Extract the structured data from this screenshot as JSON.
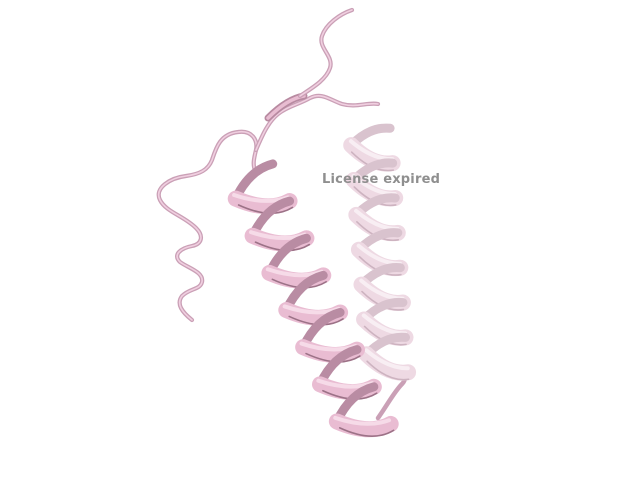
{
  "viewer": {
    "watermark_text": "License expired",
    "background_color": "#ffffff"
  },
  "structure": {
    "representation": "cartoon",
    "ribbon_color": "#e6b3cc",
    "ribbon_shadow_color": "#b98ca3",
    "coil_color": "#d9a6bf",
    "helix_count": 2
  }
}
